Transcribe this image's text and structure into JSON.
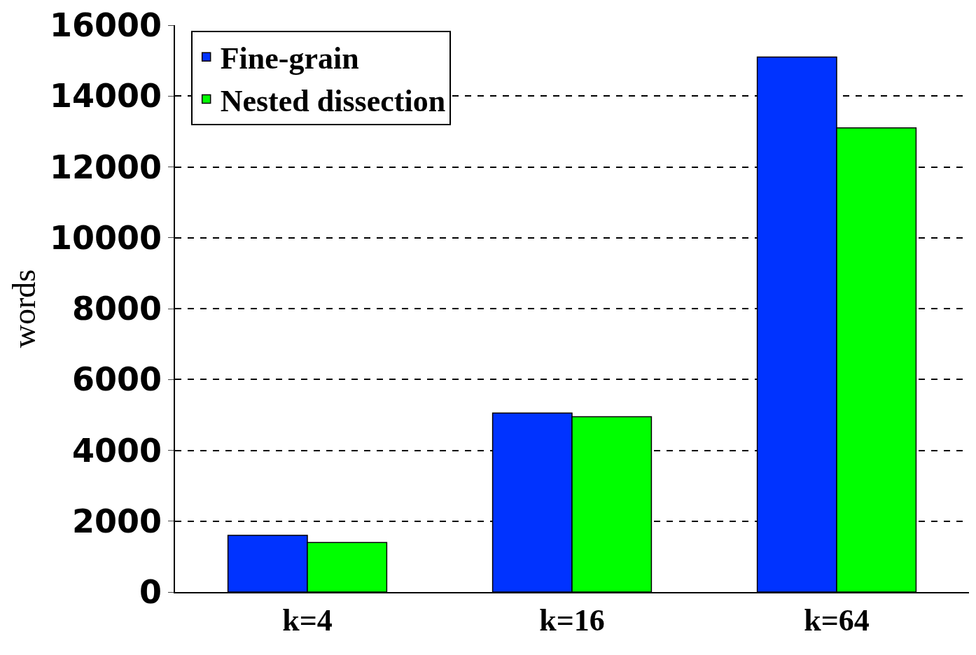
{
  "chart_data": {
    "type": "bar",
    "ylabel": "words",
    "categories": [
      "k=4",
      "k=16",
      "k=64"
    ],
    "series": [
      {
        "name": "Fine-grain",
        "color": "#0033ff",
        "values": [
          1600,
          5050,
          15100
        ]
      },
      {
        "name": "Nested dissection",
        "color": "#00ff00",
        "values": [
          1400,
          4950,
          13100
        ]
      }
    ],
    "ylim": [
      0,
      16000
    ],
    "yticks": [
      0,
      2000,
      4000,
      6000,
      8000,
      10000,
      12000,
      14000,
      16000
    ],
    "grid": "y",
    "legend": "top left"
  }
}
